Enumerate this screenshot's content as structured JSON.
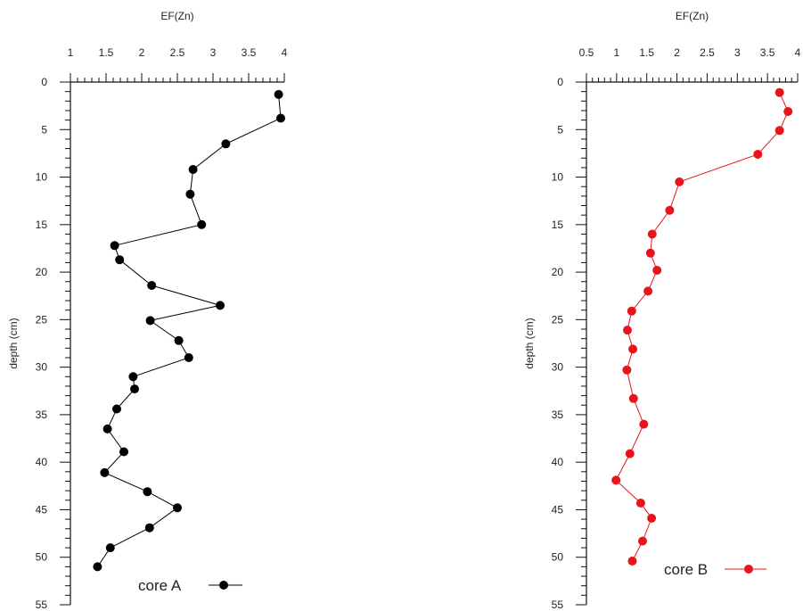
{
  "chart_data": [
    {
      "type": "line",
      "orientation": "depth-profile",
      "xlabel": "EF(Zn)",
      "ylabel": "depth (cm)",
      "xlim": [
        1,
        4
      ],
      "ylim": [
        0,
        55
      ],
      "x_ticks": [
        "1",
        "1.5",
        "2",
        "2.5",
        "3",
        "3.5",
        "4"
      ],
      "y_ticks": [
        "0",
        "5",
        "10",
        "15",
        "20",
        "25",
        "30",
        "35",
        "40",
        "45",
        "50",
        "55"
      ],
      "legend_position": "bottom-right",
      "series": [
        {
          "name": "core A",
          "color": "#000000",
          "x": [
            3.92,
            3.95,
            3.18,
            2.72,
            2.68,
            2.84,
            1.62,
            1.69,
            2.14,
            3.1,
            2.12,
            2.52,
            2.66,
            1.88,
            1.9,
            1.65,
            1.52,
            1.75,
            1.48,
            2.08,
            2.5,
            2.11,
            1.56,
            1.38
          ],
          "y": [
            1.3,
            3.8,
            6.5,
            9.2,
            11.8,
            15.0,
            17.2,
            18.7,
            21.4,
            23.5,
            25.1,
            27.2,
            29.0,
            31.0,
            32.3,
            34.4,
            36.5,
            38.9,
            41.1,
            43.1,
            44.8,
            46.9,
            49.0,
            51.0
          ]
        }
      ]
    },
    {
      "type": "line",
      "orientation": "depth-profile",
      "xlabel": "EF(Zn)",
      "ylabel": "depth (cm)",
      "xlim": [
        0.5,
        4
      ],
      "ylim": [
        0,
        55
      ],
      "x_ticks": [
        "0.5",
        "1",
        "1.5",
        "2",
        "2.5",
        "3",
        "3.5",
        "4"
      ],
      "y_ticks": [
        "0",
        "5",
        "10",
        "15",
        "20",
        "25",
        "30",
        "35",
        "40",
        "45",
        "50",
        "55"
      ],
      "legend_position": "bottom-right",
      "series": [
        {
          "name": "core B",
          "color": "#e8141b",
          "x": [
            3.7,
            3.84,
            3.7,
            3.34,
            2.04,
            1.88,
            1.59,
            1.56,
            1.67,
            1.52,
            1.25,
            1.18,
            1.27,
            1.17,
            1.28,
            1.45,
            1.22,
            0.99,
            1.4,
            1.58,
            1.43,
            1.26
          ],
          "y": [
            1.1,
            3.1,
            5.1,
            7.6,
            10.5,
            13.5,
            16.0,
            18.0,
            19.8,
            22.0,
            24.1,
            26.1,
            28.1,
            30.3,
            33.3,
            36.0,
            39.1,
            41.9,
            44.3,
            45.9,
            48.3,
            50.4
          ]
        }
      ]
    }
  ]
}
